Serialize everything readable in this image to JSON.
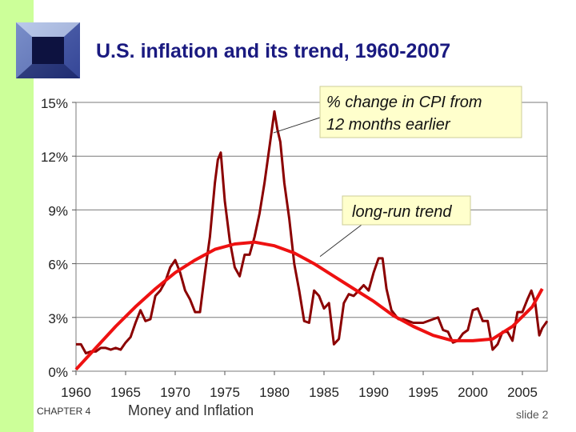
{
  "slide": {
    "title": "U.S. inflation and its trend, 1960-2007",
    "chapter": "CHAPTER 4",
    "subject": "Money and Inflation",
    "slide_label": "slide 2"
  },
  "colors": {
    "sidebar": "#ccff99",
    "title": "#1a1a80",
    "cpi_series": "#8b0000",
    "trend_series": "#ee1111",
    "callout_bg": "#ffffcc"
  },
  "chart_data": {
    "type": "line",
    "title": "U.S. inflation and its trend, 1960-2007",
    "xlabel": "",
    "ylabel": "",
    "xlim": [
      1960,
      2007.5
    ],
    "ylim": [
      0,
      15
    ],
    "grid": true,
    "y_ticks": [
      {
        "value": 0,
        "label": "0%"
      },
      {
        "value": 3,
        "label": "3%"
      },
      {
        "value": 6,
        "label": "6%"
      },
      {
        "value": 9,
        "label": "9%"
      },
      {
        "value": 12,
        "label": "12%"
      },
      {
        "value": 15,
        "label": "15%"
      }
    ],
    "x_ticks": [
      {
        "value": 1960,
        "label": "1960"
      },
      {
        "value": 1965,
        "label": "1965"
      },
      {
        "value": 1970,
        "label": "1970"
      },
      {
        "value": 1975,
        "label": "1975"
      },
      {
        "value": 1980,
        "label": "1980"
      },
      {
        "value": 1985,
        "label": "1985"
      },
      {
        "value": 1990,
        "label": "1990"
      },
      {
        "value": 1995,
        "label": "1995"
      },
      {
        "value": 2000,
        "label": "2000"
      },
      {
        "value": 2005,
        "label": "2005"
      }
    ],
    "series": [
      {
        "name": "% change in CPI from 12 months earlier",
        "x": [
          1960.0,
          1960.5,
          1961.0,
          1961.5,
          1962.0,
          1962.5,
          1963.0,
          1963.5,
          1964.0,
          1964.5,
          1965.0,
          1965.5,
          1966.0,
          1966.5,
          1967.0,
          1967.5,
          1968.0,
          1968.5,
          1969.0,
          1969.5,
          1970.0,
          1970.5,
          1971.0,
          1971.5,
          1972.0,
          1972.5,
          1973.0,
          1973.5,
          1974.0,
          1974.3,
          1974.6,
          1975.0,
          1975.5,
          1976.0,
          1976.5,
          1977.0,
          1977.5,
          1978.0,
          1978.5,
          1979.0,
          1979.5,
          1980.0,
          1980.3,
          1980.6,
          1981.0,
          1981.5,
          1982.0,
          1982.5,
          1983.0,
          1983.5,
          1984.0,
          1984.5,
          1985.0,
          1985.5,
          1986.0,
          1986.5,
          1987.0,
          1987.5,
          1988.0,
          1988.5,
          1989.0,
          1989.5,
          1990.0,
          1990.5,
          1990.9,
          1991.3,
          1991.8,
          1992.5,
          1993.0,
          1994.0,
          1995.0,
          1996.0,
          1996.5,
          1997.0,
          1997.5,
          1998.0,
          1998.5,
          1999.0,
          1999.5,
          2000.0,
          2000.5,
          2001.0,
          2001.5,
          2002.0,
          2002.5,
          2003.0,
          2003.5,
          2004.0,
          2004.5,
          2005.0,
          2005.5,
          2005.9,
          2006.3,
          2006.7,
          2007.0,
          2007.5
        ],
        "values": [
          1.5,
          1.5,
          1.0,
          1.1,
          1.1,
          1.3,
          1.3,
          1.2,
          1.3,
          1.2,
          1.6,
          1.9,
          2.7,
          3.4,
          2.8,
          2.9,
          4.2,
          4.5,
          5.0,
          5.8,
          6.2,
          5.5,
          4.5,
          4.0,
          3.3,
          3.3,
          5.5,
          7.5,
          10.5,
          11.8,
          12.2,
          9.5,
          7.3,
          5.8,
          5.3,
          6.5,
          6.5,
          7.5,
          8.8,
          10.5,
          12.5,
          14.5,
          13.5,
          12.8,
          10.5,
          8.5,
          6.0,
          4.5,
          2.8,
          2.7,
          4.5,
          4.2,
          3.5,
          3.8,
          1.5,
          1.8,
          3.8,
          4.3,
          4.2,
          4.5,
          4.8,
          4.5,
          5.5,
          6.3,
          6.3,
          4.6,
          3.4,
          2.9,
          2.9,
          2.7,
          2.7,
          2.9,
          3.0,
          2.3,
          2.2,
          1.6,
          1.7,
          2.1,
          2.3,
          3.4,
          3.5,
          2.8,
          2.8,
          1.2,
          1.5,
          2.2,
          2.2,
          1.7,
          3.3,
          3.3,
          4.0,
          4.5,
          3.8,
          2.0,
          2.4,
          2.8
        ]
      },
      {
        "name": "long-run trend",
        "x": [
          1960,
          1962,
          1964,
          1966,
          1968,
          1970,
          1972,
          1974,
          1976,
          1978,
          1980,
          1982,
          1984,
          1986,
          1988,
          1990,
          1992,
          1994,
          1996,
          1998,
          2000,
          2002,
          2004,
          2006,
          2007
        ],
        "values": [
          0.1,
          1.3,
          2.5,
          3.6,
          4.6,
          5.5,
          6.2,
          6.8,
          7.1,
          7.2,
          7.0,
          6.6,
          6.0,
          5.3,
          4.6,
          3.9,
          3.1,
          2.5,
          2.0,
          1.7,
          1.7,
          1.8,
          2.5,
          3.6,
          4.6
        ]
      }
    ],
    "annotations": [
      {
        "text_lines": [
          "% change in CPI from",
          "12 months earlier"
        ],
        "points_to_series": 0,
        "points_to": [
          1979.9,
          13.3
        ]
      },
      {
        "text_lines": [
          "long-run trend"
        ],
        "points_to_series": 1,
        "points_to": [
          1984.6,
          6.4
        ]
      }
    ]
  }
}
